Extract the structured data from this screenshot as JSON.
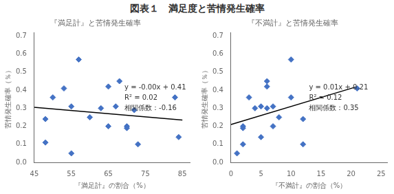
{
  "chart_data": [
    {
      "type": "scatter",
      "title": "図表１　満足度と苦情発生確率",
      "subtitle": "『満足計』と苦情発生確率",
      "x_label": "『満足計』の割合（%）",
      "y_label": "苦情発生確率（％）",
      "annotations": [
        "y = -0.00x + 0.41",
        "R² = 0.02",
        "相関係数：-0.16"
      ],
      "series": [
        {
          "type": "scatter",
          "color": "#4472C4",
          "marker": "diamond",
          "x": [
            48,
            48,
            50,
            53,
            55,
            55,
            57,
            60,
            63,
            65,
            65,
            67,
            68,
            70,
            70,
            72,
            73,
            83,
            84
          ],
          "values": [
            0.11,
            0.24,
            0.36,
            0.41,
            0.31,
            0.05,
            0.57,
            0.25,
            0.3,
            0.42,
            0.2,
            0.31,
            0.45,
            0.2,
            0.19,
            0.29,
            0.1,
            0.36,
            0.14
          ]
        },
        {
          "type": "line",
          "color": "#000000",
          "line_style": "solid",
          "x": [
            45,
            85
          ],
          "values": [
            0.305,
            0.235
          ]
        }
      ],
      "xlim": [
        45,
        87
      ],
      "xticks": [
        45,
        55,
        65,
        75,
        85
      ],
      "ylim": [
        0,
        0.72
      ],
      "yticks": [
        {
          "value": 0,
          "label": "0.0"
        },
        0.1,
        0.2,
        0.3,
        0.4,
        0.5,
        0.6,
        0.7
      ],
      "grid": false
    },
    {
      "type": "scatter",
      "subtitle": "『不満計』と苦情発生確率",
      "x_label": "『不満計』の割合（%）",
      "y_label": "苦情発生確率（％）",
      "annotations": [
        "y = 0.01x + 0.21",
        "R² = 0.12",
        "相関係数：0.35"
      ],
      "series": [
        {
          "type": "scatter",
          "color": "#4472C4",
          "marker": "diamond",
          "x": [
            1,
            2,
            2,
            2,
            3,
            4,
            5,
            5,
            6,
            6,
            6,
            7,
            7,
            8,
            10,
            10,
            12,
            12,
            21
          ],
          "values": [
            0.05,
            0.2,
            0.19,
            0.1,
            0.36,
            0.3,
            0.31,
            0.14,
            0.45,
            0.3,
            0.42,
            0.31,
            0.2,
            0.25,
            0.57,
            0.36,
            0.24,
            0.1,
            0.41
          ]
        },
        {
          "type": "line",
          "color": "#000000",
          "line_style": "solid",
          "x": [
            0,
            21
          ],
          "values": [
            0.21,
            0.42
          ]
        }
      ],
      "xlim": [
        0,
        26
      ],
      "xticks": [
        0,
        5,
        10,
        15,
        20,
        25
      ],
      "ylim": [
        0,
        0.72
      ],
      "yticks": [
        {
          "value": 0,
          "label": "0.0"
        },
        0.1,
        0.2,
        0.3,
        0.4,
        0.5,
        0.6,
        0.7
      ],
      "grid": false
    }
  ]
}
